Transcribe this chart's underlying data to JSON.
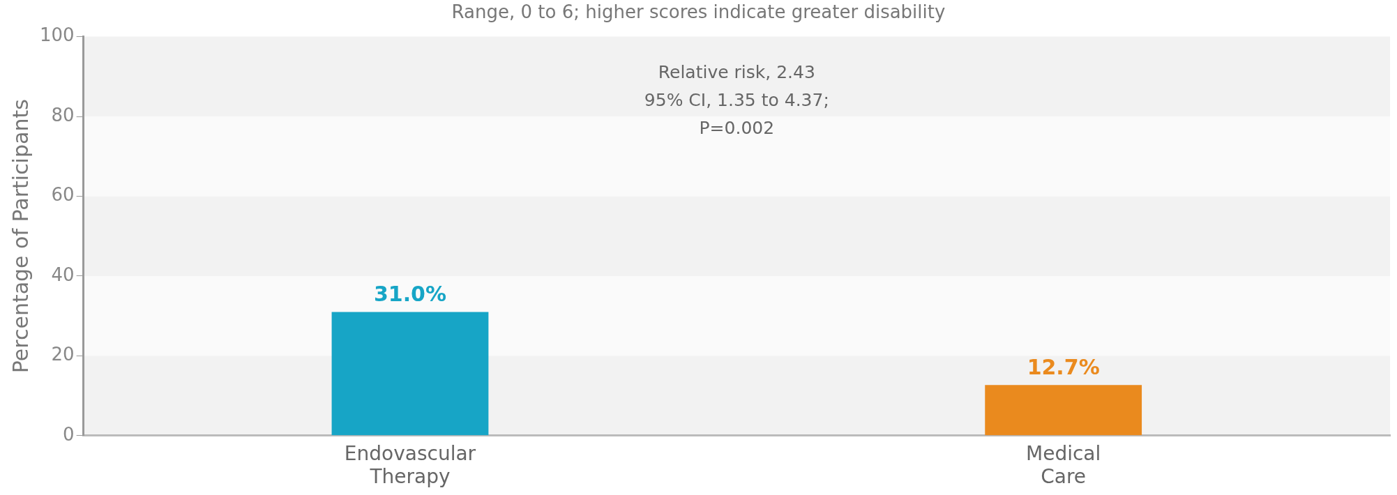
{
  "chart_data": {
    "type": "bar",
    "subtitle": "Range, 0 to 6; higher scores indicate greater disability",
    "ylabel": "Percentage of Participants",
    "categories": [
      "Endovascular Therapy",
      "Medical Care"
    ],
    "values": [
      31.0,
      12.7
    ],
    "colors": [
      "#17a5c6",
      "#ea8a1e"
    ],
    "value_labels": [
      "31.0%",
      "12.7%"
    ],
    "annotations": [
      "Relative risk, 2.43",
      "95% CI, 1.35 to 4.37;",
      "P=0.002"
    ],
    "ylim": [
      0,
      100
    ],
    "yticks": [
      0,
      20,
      40,
      60,
      80,
      100
    ],
    "legend": false
  }
}
